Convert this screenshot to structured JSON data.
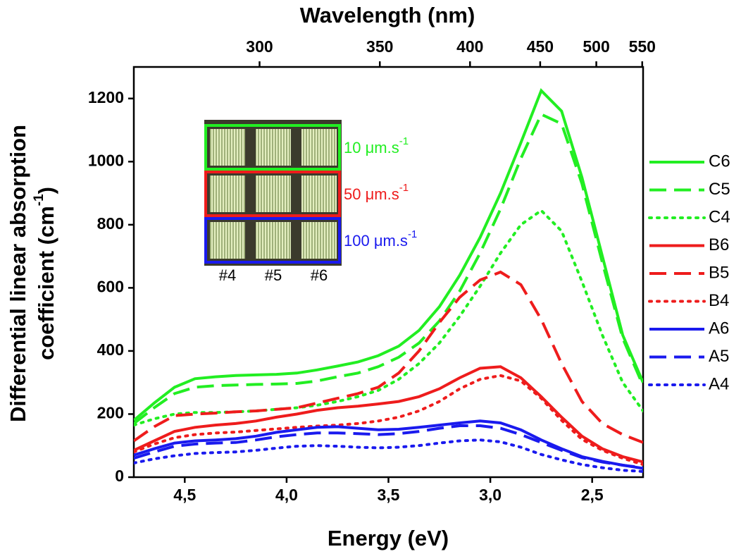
{
  "chart_data": {
    "type": "line",
    "xlabel": "Energy (eV)",
    "x2label": "Wavelength (nm)",
    "ylabel": {
      "line1": "Differential linear absorption",
      "line2": "coefficient (cm",
      "sup": "-1",
      "end": ")"
    },
    "x": [
      4.75,
      4.65,
      4.55,
      4.45,
      4.35,
      4.25,
      4.15,
      4.05,
      3.95,
      3.85,
      3.75,
      3.65,
      3.55,
      3.45,
      3.35,
      3.25,
      3.15,
      3.05,
      2.95,
      2.85,
      2.75,
      2.65,
      2.55,
      2.45,
      2.35,
      2.25
    ],
    "xlim": [
      4.75,
      2.25
    ],
    "xticks": [
      {
        "value": 4.5,
        "label": "4,5"
      },
      {
        "value": 4.0,
        "label": "4,0"
      },
      {
        "value": 3.5,
        "label": "3,5"
      },
      {
        "value": 3.0,
        "label": "3,0"
      },
      {
        "value": 2.5,
        "label": "2,5"
      }
    ],
    "x2ticks": [
      300,
      350,
      400,
      450,
      500,
      550
    ],
    "ylim": [
      0,
      1300
    ],
    "yticks": [
      0,
      200,
      400,
      600,
      800,
      1000,
      1200
    ],
    "series": [
      {
        "name": "C6",
        "color": "#22ee22",
        "dash": "solid",
        "values": [
          180,
          235,
          285,
          312,
          318,
          322,
          324,
          326,
          330,
          340,
          352,
          365,
          385,
          415,
          465,
          540,
          640,
          760,
          900,
          1060,
          1225,
          1160,
          950,
          700,
          450,
          300
        ]
      },
      {
        "name": "C5",
        "color": "#22ee22",
        "dash": "dashed",
        "values": [
          170,
          220,
          265,
          285,
          290,
          292,
          294,
          295,
          297,
          305,
          318,
          330,
          350,
          380,
          425,
          495,
          590,
          710,
          850,
          1010,
          1150,
          1120,
          930,
          680,
          440,
          290
        ]
      },
      {
        "name": "C4",
        "color": "#22ee22",
        "dash": "dotted",
        "values": [
          165,
          185,
          200,
          205,
          205,
          207,
          210,
          215,
          220,
          228,
          240,
          255,
          275,
          310,
          360,
          425,
          510,
          605,
          710,
          800,
          845,
          780,
          620,
          450,
          300,
          210
        ]
      },
      {
        "name": "B6",
        "color": "#ee1c1c",
        "dash": "solid",
        "values": [
          85,
          115,
          145,
          158,
          165,
          170,
          178,
          190,
          200,
          212,
          220,
          225,
          232,
          240,
          255,
          280,
          315,
          345,
          350,
          315,
          255,
          190,
          130,
          90,
          65,
          48
        ]
      },
      {
        "name": "B5",
        "color": "#ee1c1c",
        "dash": "dashed",
        "values": [
          115,
          160,
          195,
          200,
          203,
          207,
          210,
          215,
          220,
          235,
          250,
          265,
          285,
          330,
          400,
          490,
          570,
          625,
          650,
          610,
          500,
          360,
          240,
          170,
          135,
          110
        ]
      },
      {
        "name": "B4",
        "color": "#ee1c1c",
        "dash": "dotted",
        "values": [
          80,
          105,
          125,
          135,
          140,
          143,
          148,
          153,
          158,
          162,
          165,
          170,
          178,
          190,
          210,
          240,
          280,
          310,
          322,
          305,
          250,
          180,
          120,
          85,
          60,
          40
        ]
      },
      {
        "name": "A6",
        "color": "#1a1aee",
        "dash": "solid",
        "values": [
          70,
          90,
          108,
          115,
          118,
          122,
          130,
          142,
          150,
          158,
          160,
          155,
          150,
          152,
          158,
          165,
          172,
          178,
          172,
          150,
          118,
          90,
          65,
          50,
          38,
          28
        ]
      },
      {
        "name": "A5",
        "color": "#1a1aee",
        "dash": "dashed",
        "values": [
          60,
          80,
          98,
          105,
          108,
          110,
          118,
          128,
          135,
          140,
          140,
          138,
          135,
          138,
          145,
          155,
          163,
          163,
          155,
          135,
          110,
          85,
          62,
          48,
          38,
          30
        ]
      },
      {
        "name": "A4",
        "color": "#1a1aee",
        "dash": "dotted",
        "values": [
          45,
          58,
          68,
          75,
          78,
          80,
          85,
          92,
          98,
          100,
          98,
          95,
          93,
          95,
          100,
          108,
          115,
          118,
          112,
          95,
          72,
          55,
          40,
          30,
          22,
          18
        ]
      }
    ],
    "inset": {
      "rows": [
        {
          "label": "10 μm.s",
          "sup": "-1",
          "color": "#22ee22"
        },
        {
          "label": "50 μm.s",
          "sup": "-1",
          "color": "#ee1c1c"
        },
        {
          "label": "100 μm.s",
          "sup": "-1",
          "color": "#1a1aee"
        }
      ],
      "columns": [
        "#4",
        "#5",
        "#6"
      ]
    }
  }
}
